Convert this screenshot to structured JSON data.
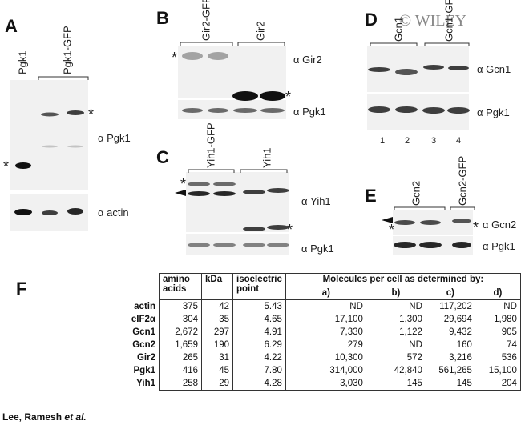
{
  "watermark": "© WILEY",
  "panels": [
    {
      "label": "A",
      "lanes": [
        "Pgk1",
        "Pgk1-GFP"
      ],
      "antibodies": [
        "α Pgk1",
        "α actin"
      ],
      "markers": [
        "*",
        "*"
      ]
    },
    {
      "label": "B",
      "lanes": [
        "Gir2-GFP",
        "Gir2"
      ],
      "antibodies": [
        "α Gir2",
        "α Pgk1"
      ],
      "markers": [
        "*",
        "*"
      ]
    },
    {
      "label": "C",
      "lanes": [
        "Yih1-GFP",
        "Yih1"
      ],
      "antibodies": [
        "α Yih1",
        "α Pgk1"
      ],
      "markers": [
        "*",
        "*"
      ]
    },
    {
      "label": "D",
      "lanes": [
        "Gcn1",
        "Gcn1-GFP"
      ],
      "antibodies": [
        "α Gcn1",
        "α Pgk1"
      ],
      "lane_numbers": [
        "1",
        "2",
        "3",
        "4"
      ]
    },
    {
      "label": "E",
      "lanes": [
        "Gcn2",
        "Gcn2-GFP"
      ],
      "antibodies": [
        "α Gcn2",
        "α Pgk1"
      ],
      "markers": [
        "*",
        "*"
      ]
    }
  ],
  "table": {
    "label": "F",
    "headers": [
      "amino acids",
      "kDa",
      "isoelectric point"
    ],
    "group_header": "Molecules per cell as determined by:",
    "subheaders": [
      "a)",
      "b)",
      "c)",
      "d)"
    ],
    "rows": [
      [
        "actin",
        "375",
        "42",
        "5.43",
        "ND",
        "ND",
        "117,202",
        "ND"
      ],
      [
        "eIF2α",
        "304",
        "35",
        "4.65",
        "17,100",
        "1,300",
        "29,694",
        "1,980"
      ],
      [
        "Gcn1",
        "2,672",
        "297",
        "4.91",
        "7,330",
        "1,122",
        "9,432",
        "905"
      ],
      [
        "Gcn2",
        "1,659",
        "190",
        "6.29",
        "279",
        "ND",
        "160",
        "74"
      ],
      [
        "Gir2",
        "265",
        "31",
        "4.22",
        "10,300",
        "572",
        "3,216",
        "536"
      ],
      [
        "Pgk1",
        "416",
        "45",
        "7.80",
        "314,000",
        "42,840",
        "561,265",
        "15,100"
      ],
      [
        "Yih1",
        "258",
        "29",
        "4.28",
        "3,030",
        "145",
        "145",
        "204"
      ]
    ]
  },
  "footer": {
    "authors": "Lee, Ramesh",
    "etal": "et al."
  }
}
